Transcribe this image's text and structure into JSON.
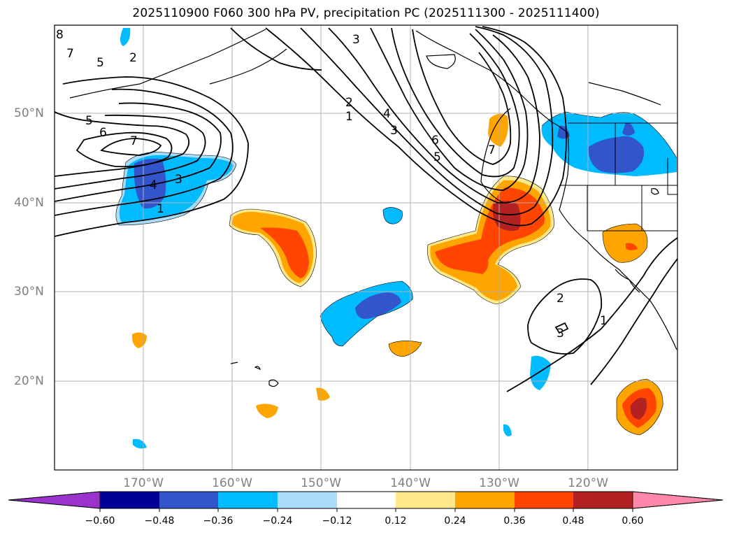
{
  "title": "2025110900 F060 300 hPa PV, precipitation PC (2025111300 - 2025111400)",
  "lat_labels": [
    "50°N",
    "40°N",
    "30°N",
    "20°N"
  ],
  "lon_labels": [
    "170°W",
    "160°W",
    "150°W",
    "140°W",
    "130°W",
    "120°W"
  ],
  "colorbar": {
    "ticks": [
      "−0.60",
      "−0.48",
      "−0.36",
      "−0.24",
      "−0.12",
      "0.12",
      "0.24",
      "0.36",
      "0.48",
      "0.60"
    ],
    "colors": [
      "#9933cc",
      "#000099",
      "#3355cc",
      "#00bbff",
      "#aaddfa",
      "#ffffff",
      "#ffe88a",
      "#ffa500",
      "#ff4500",
      "#b22222",
      "#ff88aa"
    ]
  },
  "contour_labels": [
    "8",
    "7",
    "5",
    "2",
    "5",
    "6",
    "7",
    "4",
    "3",
    "1",
    "3",
    "2",
    "1",
    "4",
    "3",
    "6",
    "5",
    "7",
    "2",
    "3",
    "1"
  ]
}
